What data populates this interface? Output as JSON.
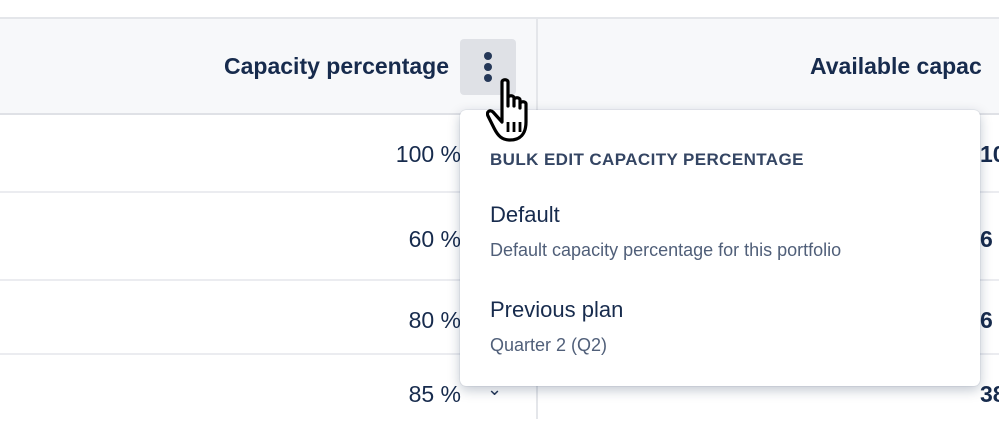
{
  "table": {
    "columns": [
      {
        "label": "Capacity percentage"
      },
      {
        "label": "Available capac"
      }
    ],
    "rows": [
      {
        "capacity": "100 %",
        "available": "10"
      },
      {
        "capacity": "60 %",
        "available": "6"
      },
      {
        "capacity": "80 %",
        "available": "6"
      },
      {
        "capacity": "85 %",
        "available": "38"
      }
    ]
  },
  "column_menu": {
    "icon": "more-vertical-icon"
  },
  "dropdown": {
    "title": "BULK EDIT CAPACITY PERCENTAGE",
    "items": [
      {
        "label": "Default",
        "description": "Default capacity percentage for this portfolio"
      },
      {
        "label": "Previous plan",
        "description": "Quarter 2 (Q2)"
      }
    ]
  }
}
